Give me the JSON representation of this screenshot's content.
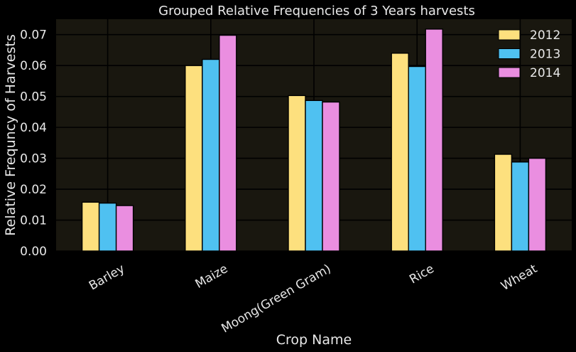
{
  "chart_data": {
    "type": "bar",
    "title": "Grouped Relative Frequencies of 3 Years harvests",
    "xlabel": "Crop Name",
    "ylabel": "Relative Frequncy of Harvests",
    "categories": [
      "Barley",
      "Maize",
      "Moong(Green Gram)",
      "Rice",
      "Wheat"
    ],
    "series": [
      {
        "name": "2012",
        "color": "#fde07e",
        "values": [
          0.0158,
          0.06,
          0.0503,
          0.064,
          0.0313
        ]
      },
      {
        "name": "2013",
        "color": "#4fc1f1",
        "values": [
          0.0155,
          0.062,
          0.0487,
          0.0597,
          0.0288
        ]
      },
      {
        "name": "2014",
        "color": "#ea8ee0",
        "values": [
          0.0147,
          0.0698,
          0.0482,
          0.0718,
          0.03
        ]
      }
    ],
    "ylim": [
      0,
      0.075
    ],
    "yticks": [
      "0.00",
      "0.01",
      "0.02",
      "0.03",
      "0.04",
      "0.05",
      "0.06",
      "0.07"
    ],
    "grid": true,
    "legend_position": "top-right",
    "colors": {
      "background": "#000000",
      "plot_background": "#19170f",
      "grid": "#000000"
    }
  }
}
